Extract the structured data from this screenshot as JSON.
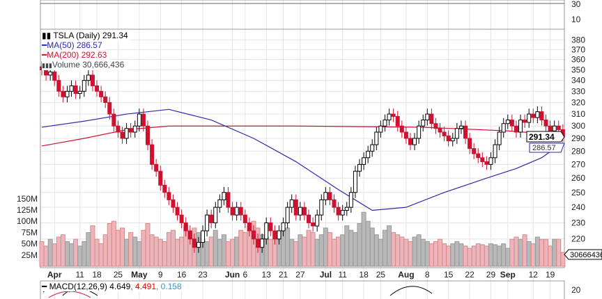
{
  "legend": {
    "title": "TSLA (Daily) 291.34",
    "ma50": "MA(50) 286.57",
    "ma200": "MA(200) 292.63",
    "volume": "Volume 30,666,436",
    "macd_name": "MACD(12,26,9)",
    "macd_v1": "4.649",
    "macd_v2": ", 4.491",
    "macd_v3": ", 0.158"
  },
  "top_panel": {
    "ticks": [
      "30",
      "10"
    ]
  },
  "last_price_tag": "291.34",
  "ma50_tag": "286.57",
  "volume_tag": "30666436",
  "macd_panel": {
    "ticks": [
      "20"
    ]
  },
  "colors": {
    "up": "#000000",
    "down": "#d0102f",
    "ma50": "#2a2aa8",
    "ma200": "#d0102f",
    "vol_up": "#b8b8b8",
    "vol_down": "#eab5bb"
  },
  "chart_data": {
    "type": "candlestick",
    "ylim": [
      215,
      390
    ],
    "yscale": "log",
    "yticks": [
      220,
      230,
      240,
      250,
      260,
      270,
      280,
      290,
      300,
      310,
      320,
      330,
      340,
      350,
      360,
      370,
      380
    ],
    "vol_ticks": [
      {
        "v": 25,
        "label": "25M"
      },
      {
        "v": 50,
        "label": "50M"
      },
      {
        "v": 75,
        "label": "75M"
      },
      {
        "v": 100,
        "label": "100M"
      },
      {
        "v": 125,
        "label": "125M"
      },
      {
        "v": 150,
        "label": "150M"
      }
    ],
    "x_labels": [
      {
        "i": 3,
        "t": "Apr",
        "bold": true
      },
      {
        "i": 9,
        "t": "11"
      },
      {
        "i": 13,
        "t": "18"
      },
      {
        "i": 18,
        "t": "25"
      },
      {
        "i": 23,
        "t": "May",
        "bold": true
      },
      {
        "i": 28,
        "t": "9"
      },
      {
        "i": 33,
        "t": "16"
      },
      {
        "i": 38,
        "t": "23"
      },
      {
        "i": 45,
        "t": "Jun",
        "bold": true
      },
      {
        "i": 48,
        "t": "6"
      },
      {
        "i": 53,
        "t": "13"
      },
      {
        "i": 57,
        "t": "21"
      },
      {
        "i": 61,
        "t": "27"
      },
      {
        "i": 67,
        "t": "Jul",
        "bold": true
      },
      {
        "i": 71,
        "t": "11"
      },
      {
        "i": 76,
        "t": "18"
      },
      {
        "i": 80,
        "t": "25"
      },
      {
        "i": 86,
        "t": "Aug",
        "bold": true
      },
      {
        "i": 91,
        "t": "8"
      },
      {
        "i": 96,
        "t": "15"
      },
      {
        "i": 101,
        "t": "22"
      },
      {
        "i": 106,
        "t": "29"
      },
      {
        "i": 110,
        "t": "Sep",
        "bold": true
      },
      {
        "i": 116,
        "t": "12"
      },
      {
        "i": 120,
        "t": "19"
      }
    ],
    "close": [
      350,
      345,
      348,
      340,
      330,
      325,
      330,
      335,
      328,
      330,
      340,
      345,
      335,
      330,
      325,
      320,
      310,
      300,
      295,
      290,
      298,
      295,
      300,
      310,
      300,
      285,
      270,
      265,
      255,
      250,
      245,
      240,
      235,
      230,
      225,
      220,
      215,
      218,
      225,
      235,
      230,
      240,
      245,
      250,
      240,
      235,
      240,
      235,
      230,
      225,
      220,
      215,
      220,
      230,
      225,
      220,
      225,
      230,
      240,
      245,
      235,
      240,
      235,
      230,
      228,
      235,
      245,
      250,
      245,
      240,
      235,
      238,
      240,
      250,
      265,
      270,
      275,
      280,
      285,
      295,
      300,
      305,
      310,
      308,
      300,
      295,
      290,
      285,
      290,
      300,
      305,
      310,
      302,
      298,
      295,
      292,
      288,
      290,
      298,
      300,
      290,
      282,
      278,
      275,
      272,
      270,
      275,
      285,
      295,
      302,
      305,
      300,
      295,
      305,
      303,
      310,
      307,
      312,
      305,
      300,
      296,
      300,
      297,
      291.34
    ],
    "volume": [
      55,
      45,
      60,
      50,
      65,
      70,
      55,
      50,
      60,
      45,
      55,
      75,
      90,
      60,
      50,
      70,
      95,
      100,
      80,
      85,
      60,
      75,
      65,
      55,
      80,
      95,
      70,
      65,
      60,
      55,
      75,
      80,
      60,
      65,
      90,
      70,
      85,
      75,
      60,
      55,
      65,
      80,
      60,
      70,
      55,
      60,
      65,
      80,
      75,
      90,
      100,
      85,
      70,
      65,
      60,
      75,
      70,
      80,
      85,
      60,
      55,
      70,
      65,
      80,
      75,
      60,
      70,
      85,
      75,
      60,
      65,
      70,
      90,
      80,
      75,
      95,
      120,
      100,
      85,
      70,
      60,
      80,
      90,
      75,
      70,
      65,
      60,
      55,
      65,
      70,
      60,
      55,
      50,
      55,
      60,
      50,
      45,
      50,
      55,
      50,
      45,
      40,
      45,
      50,
      48,
      45,
      50,
      48,
      45,
      50,
      40,
      60,
      65,
      60,
      70,
      55,
      50,
      65,
      60,
      60,
      45,
      60,
      60,
      31
    ],
    "ma50": [
      [
        0,
        299
      ],
      [
        10,
        304
      ],
      [
        20,
        310
      ],
      [
        30,
        314
      ],
      [
        40,
        305
      ],
      [
        50,
        290
      ],
      [
        60,
        272
      ],
      [
        70,
        252
      ],
      [
        78,
        238
      ],
      [
        86,
        240
      ],
      [
        95,
        250
      ],
      [
        105,
        260
      ],
      [
        112,
        267
      ],
      [
        118,
        275
      ],
      [
        123,
        286.57
      ]
    ],
    "ma200": [
      [
        0,
        284
      ],
      [
        10,
        290
      ],
      [
        20,
        297
      ],
      [
        30,
        300
      ],
      [
        60,
        300
      ],
      [
        90,
        299
      ],
      [
        110,
        296
      ],
      [
        123,
        292.63
      ]
    ]
  }
}
